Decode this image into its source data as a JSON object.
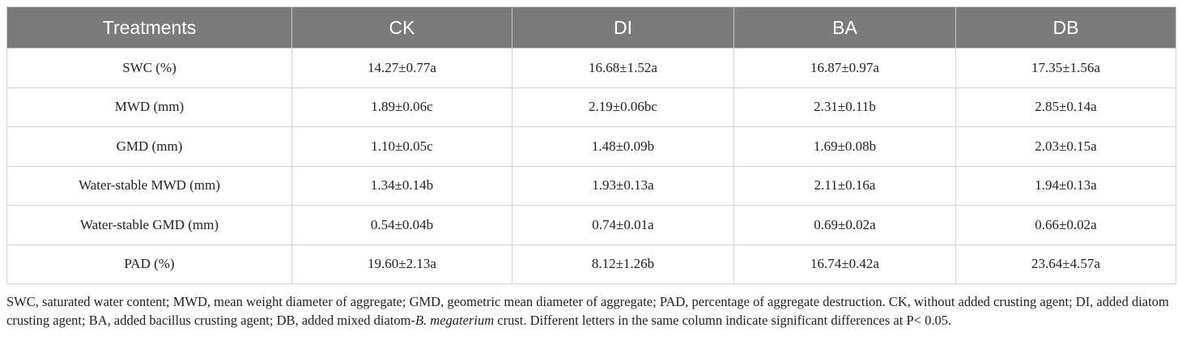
{
  "table": {
    "header": [
      "Treatments",
      "CK",
      "DI",
      "BA",
      "DB"
    ],
    "rows": [
      [
        "SWC (%)",
        "14.27±0.77a",
        "16.68±1.52a",
        "16.87±0.97a",
        "17.35±1.56a"
      ],
      [
        "MWD (mm)",
        "1.89±0.06c",
        "2.19±0.06bc",
        "2.31±0.11b",
        "2.85±0.14a"
      ],
      [
        "GMD (mm)",
        "1.10±0.05c",
        "1.48±0.09b",
        "1.69±0.08b",
        "2.03±0.15a"
      ],
      [
        "Water-stable MWD (mm)",
        "1.34±0.14b",
        "1.93±0.13a",
        "2.11±0.16a",
        "1.94±0.13a"
      ],
      [
        "Water-stable GMD (mm)",
        "0.54±0.04b",
        "0.74±0.01a",
        "0.69±0.02a",
        "0.66±0.02a"
      ],
      [
        "PAD (%)",
        "19.60±2.13a",
        "8.12±1.26b",
        "16.74±0.42a",
        "23.64±4.57a"
      ]
    ]
  },
  "footnote": {
    "parts": [
      "SWC, saturated water content; MWD, mean weight diameter of aggregate; GMD, geometric mean diameter of aggregate; PAD, percentage of aggregate destruction. CK, without added crusting agent; DI, added diatom crusting agent; BA, added bacillus crusting agent; DB, added mixed diatom-",
      "B. megaterium",
      " crust. Different letters in the same column indicate significant differences at P< 0.05."
    ]
  }
}
